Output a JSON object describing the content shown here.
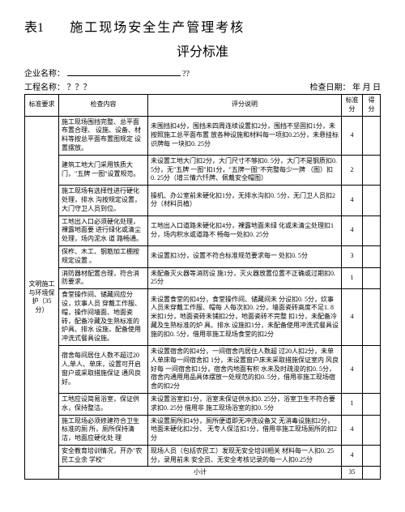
{
  "title_prefix": "表1",
  "title_main": "施工现场安全生产管理考核",
  "subtitle": "评分标准",
  "meta": {
    "company_label": "企业名称：",
    "company_value": "",
    "qmarks": "??",
    "project_label": "工程名称：",
    "project_value": "？？？",
    "date_label": "检查日期：",
    "date_value": "年 月 日"
  },
  "headers": {
    "req": "标准要求",
    "content": "检查内容",
    "desc": "评分说明",
    "std": "标准分",
    "score": "得分"
  },
  "category": {
    "label": "文明施工与环境保 护（35分）"
  },
  "rows": [
    {
      "content": "施工现场围挡完整、总平面布置合理、 设施、设备、材料等按总平面布置图规定 设置摆放。",
      "desc": "未围挡扣4分，围挡未四周连续设置扣2分，围挡不坚固扣1分，未按照施工总平面布置 放各种设施和材料每一项扣0.25分，未悬挂标 识牌每 一块扣0. 25分",
      "std": "4"
    },
    {
      "content": "建筑工地大门采用铁质大门，\"五牌 一图\"设置规范。",
      "desc": "未设置工地大门扣2分，大门尺寸不够扣0. 5分，大门不是钢质扣0.5分，无\"五牌 一图\"扣1分，\"五牌一图\"不完整每少一牌 （图）扣 0. 25分（增三情六忏牌、佩戴安全帽图）",
      "std": "2"
    },
    {
      "content": "施工现场有选择性进行硬化处理，排水 沟按规定设置，大门守卫人员到位。",
      "desc": "操机、办公室前未硬化扣1分，无排水沟扣0. 5分，无门卫人员扣2分（材料员植）",
      "std": "4"
    },
    {
      "content": "工地出入口必须硬化处理，裸露地面要 进行绿化或清尘处理，场内泥水 道 路畅通。",
      "desc": "工地出入口道路未硬化扣4分，裸露地面未绿 化或未清尘处理扣1分，场内积水或道路不 畅每一处扣0. 25分",
      "std": "4"
    },
    {
      "content": "保柞、木工、钢筋加工棚按规定设置 。",
      "desc": "未设置扣3分，设置不符合标准规范要求每一 处扣0. 5分",
      "std": "3"
    },
    {
      "content": "消防器材配置合理，符合消防要求。",
      "desc": "未配备灭火器等消防设 施1分，灭火器放置位置不正确或过期扣0. 25分",
      "std": "1"
    },
    {
      "content": "食堂操作间、储藏间应分设，炊事人员 穿戴工作服、帽，操作间墙面、地面瓷砖，配备冷藏及生熟标准的炉具、排水 设施，配备使用冲洗式餐具设施。",
      "desc": "未设置食堂的扣4分，食堂操作间、储藏间未 分设扣0. 5分，炊事人员未穿戴工作服、帽每 人每次扣0. 2分，墙面瓷砖高度不足1. 8 米扣1分，地面瓷砖未铺扣2分，地面瓷砖不完整 扣1分，未配备冷藏及生熟标准的炉 具、排水 设施扣1分，未配备使用冲洗式餐具设施的扣0. 5分，借用非施工现场食堂的扣2分",
      "std": "4"
    },
    {
      "content": "宿舍每间居住人数不超过20人,单人、单床，设置可开启窗户或采取措施保证 通风良好。",
      "desc": "未设置宿舍的扣4分，一间宿舍内居住人数超 过20人扣2分，未单人单床每一间宿舍扣 1分，未设置窗户床未采取措施保证室内 风良好每 一间宿舍扣1分，宿舍内地面有积 水未及时疏浚的扣0. 5分，宿舍内通用用品具体摆放一处规范的扣0. 5分，借用非施工现场宿舍的扣2分",
      "std": "4"
    },
    {
      "content": "工地应设简易浴室，保证供水，保持整洁。",
      "desc": "未设置浴室扣1分，浴室未保证供水扣0. 25分，浴室卫生不符合要求扣0. 25分 借用非 施工现场浴室的扣0. 5分",
      "std": "1"
    },
    {
      "content": "施工现场必须修建符合卫生标准的厕 所，厕所保持清洁，地面应硬化处 理",
      "desc": "未设置厕所扣4分，厕所便道即无冲洗设备又 无消毒设施扣2分，地面未硬化扣2分、 无专人保洁扣1分，借用非施工现场厕所的扣2分",
      "std": "4"
    },
    {
      "content": "安全教育培训情况，开办\"农民工业余 学校\"",
      "desc": "现场人员（包括农民工）发现无安全培训相关 材料每一人扣0. 25分，录用前未 安全员、无安全考核记录的每一人扣0.25分",
      "std": "4"
    }
  ],
  "footer": {
    "subtotal_label": "小计",
    "subtotal_value": "35"
  }
}
